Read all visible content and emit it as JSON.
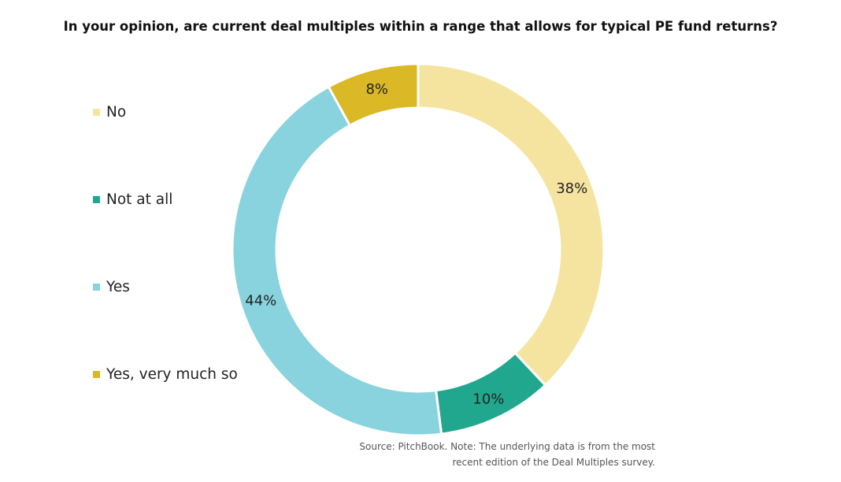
{
  "chart_data": {
    "type": "pie",
    "title": "In your opinion, are current deal multiples within a range that allows for typical PE fund returns?",
    "categories": [
      "No",
      "Not at all",
      "Yes",
      "Yes, very much so"
    ],
    "values": [
      38,
      10,
      44,
      8
    ],
    "value_labels": [
      "38%",
      "10%",
      "44%",
      "8%"
    ],
    "colors": [
      "#F5E4A0",
      "#22A78F",
      "#88D3DE",
      "#DBB825"
    ],
    "legend_position": "left",
    "donut": true
  },
  "source": {
    "line1": "Source: PitchBook. Note: The underlying data is from the most",
    "line2": "recent edition of the Deal Multiples survey."
  }
}
